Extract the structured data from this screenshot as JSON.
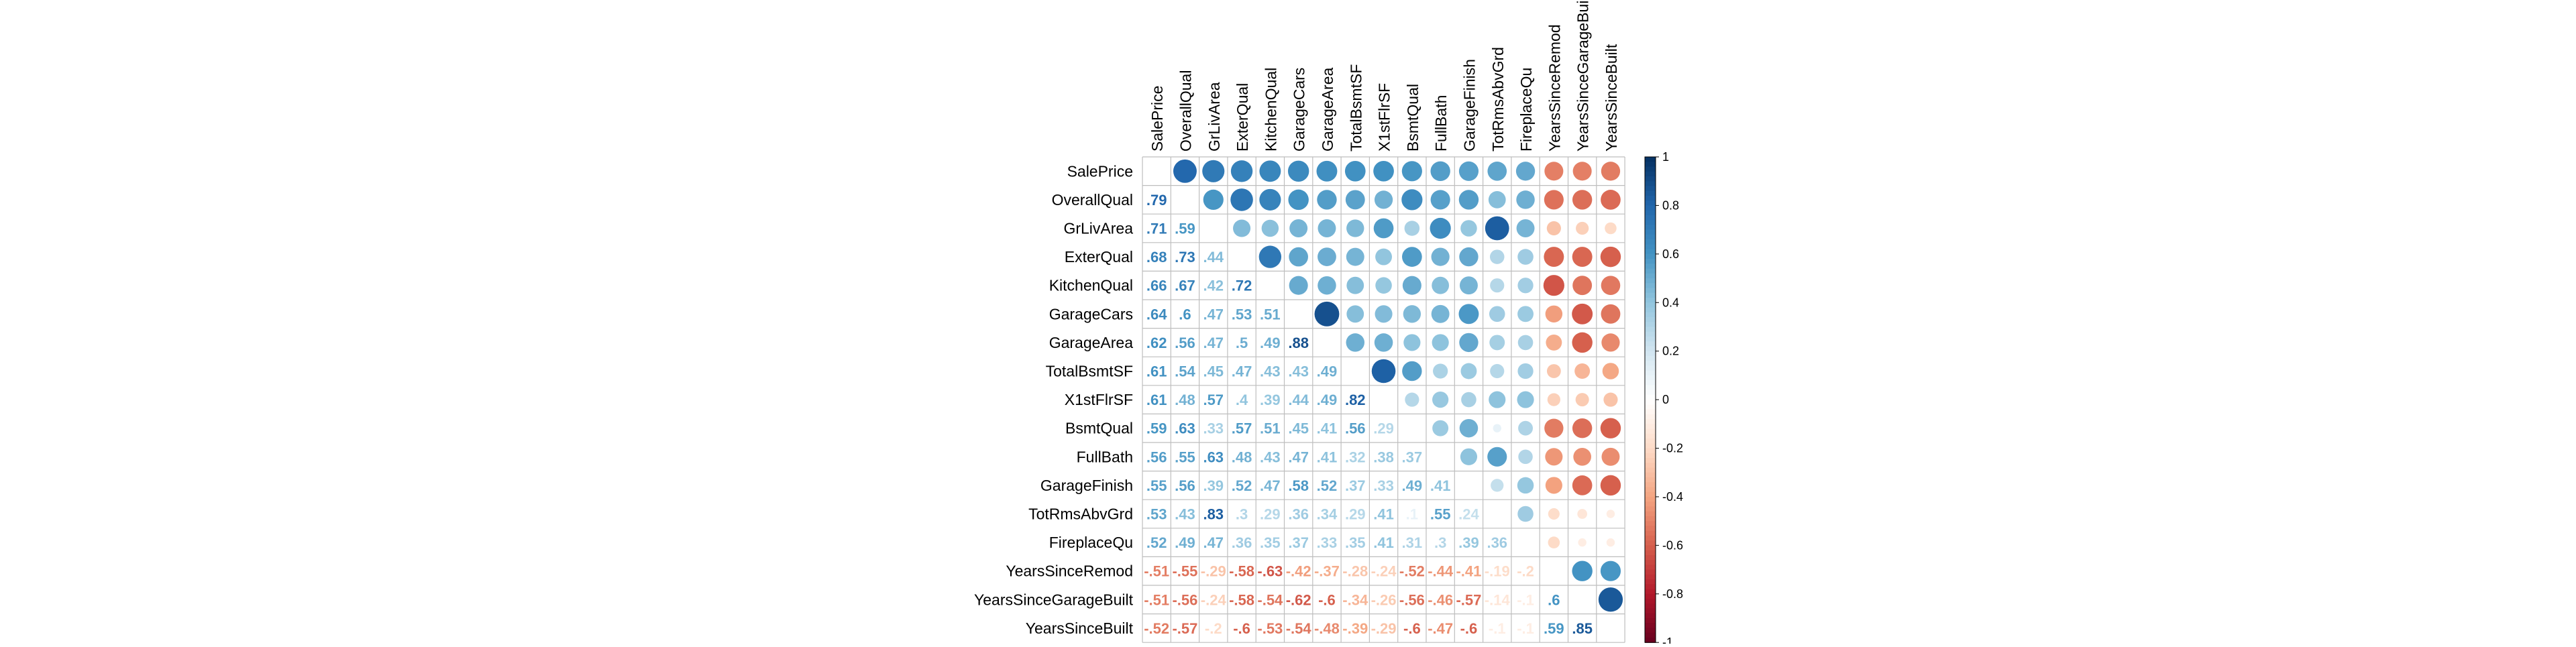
{
  "chart_data": {
    "type": "heatmap",
    "style": "corrplot-mixed: circles upper triangle, numbers lower triangle",
    "variables": [
      "SalePrice",
      "OverallQual",
      "GrLivArea",
      "ExterQual",
      "KitchenQual",
      "GarageCars",
      "GarageArea",
      "TotalBsmtSF",
      "X1stFlrSF",
      "BsmtQual",
      "FullBath",
      "GarageFinish",
      "TotRmsAbvGrd",
      "FireplaceQu",
      "YearsSinceRemod",
      "YearsSinceGarageBuilt",
      "YearsSinceBuilt"
    ],
    "lower_values": [
      [],
      [
        0.79
      ],
      [
        0.71,
        0.59
      ],
      [
        0.68,
        0.73,
        0.44
      ],
      [
        0.66,
        0.67,
        0.42,
        0.72
      ],
      [
        0.64,
        0.6,
        0.47,
        0.53,
        0.51
      ],
      [
        0.62,
        0.56,
        0.47,
        0.5,
        0.49,
        0.88
      ],
      [
        0.61,
        0.54,
        0.45,
        0.47,
        0.43,
        0.43,
        0.49
      ],
      [
        0.61,
        0.48,
        0.57,
        0.4,
        0.39,
        0.44,
        0.49,
        0.82
      ],
      [
        0.59,
        0.63,
        0.33,
        0.57,
        0.51,
        0.45,
        0.41,
        0.56,
        0.29
      ],
      [
        0.56,
        0.55,
        0.63,
        0.48,
        0.43,
        0.47,
        0.41,
        0.32,
        0.38,
        0.37
      ],
      [
        0.55,
        0.56,
        0.39,
        0.52,
        0.47,
        0.58,
        0.52,
        0.37,
        0.33,
        0.49,
        0.41
      ],
      [
        0.53,
        0.43,
        0.83,
        0.3,
        0.29,
        0.36,
        0.34,
        0.29,
        0.41,
        0.1,
        0.55,
        0.24
      ],
      [
        0.52,
        0.49,
        0.47,
        0.36,
        0.35,
        0.37,
        0.33,
        0.35,
        0.41,
        0.31,
        0.3,
        0.39,
        0.36
      ],
      [
        -0.51,
        -0.55,
        -0.29,
        -0.58,
        -0.63,
        -0.42,
        -0.37,
        -0.28,
        -0.24,
        -0.52,
        -0.44,
        -0.41,
        -0.19,
        -0.2
      ],
      [
        -0.51,
        -0.56,
        -0.24,
        -0.58,
        -0.54,
        -0.62,
        -0.6,
        -0.34,
        -0.26,
        -0.56,
        -0.46,
        -0.57,
        -0.14,
        -0.1,
        0.6
      ],
      [
        -0.52,
        -0.57,
        -0.2,
        -0.6,
        -0.53,
        -0.54,
        -0.48,
        -0.39,
        -0.29,
        -0.6,
        -0.47,
        -0.6,
        -0.1,
        -0.1,
        0.59,
        0.85
      ]
    ],
    "colorbar": {
      "range": [
        -1,
        1
      ],
      "ticks": [
        "1",
        "0.8",
        "0.6",
        "0.4",
        "0.2",
        "0",
        "-0.2",
        "-0.4",
        "-0.6",
        "-0.8",
        "-1"
      ]
    },
    "colors": {
      "positive": "#053061",
      "negative": "#67001f",
      "neutral": "#ffffff"
    }
  }
}
